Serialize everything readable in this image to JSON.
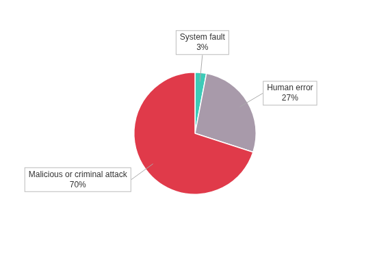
{
  "chart_data": {
    "type": "pie",
    "categories": [
      "System fault",
      "Human error",
      "Malicious or criminal attack"
    ],
    "values": [
      3,
      27,
      70
    ],
    "value_labels": [
      "3%",
      "27%",
      "70%"
    ],
    "colors": [
      "#3dcbb8",
      "#a89aaa",
      "#e03a4a"
    ],
    "data_labels": true
  }
}
